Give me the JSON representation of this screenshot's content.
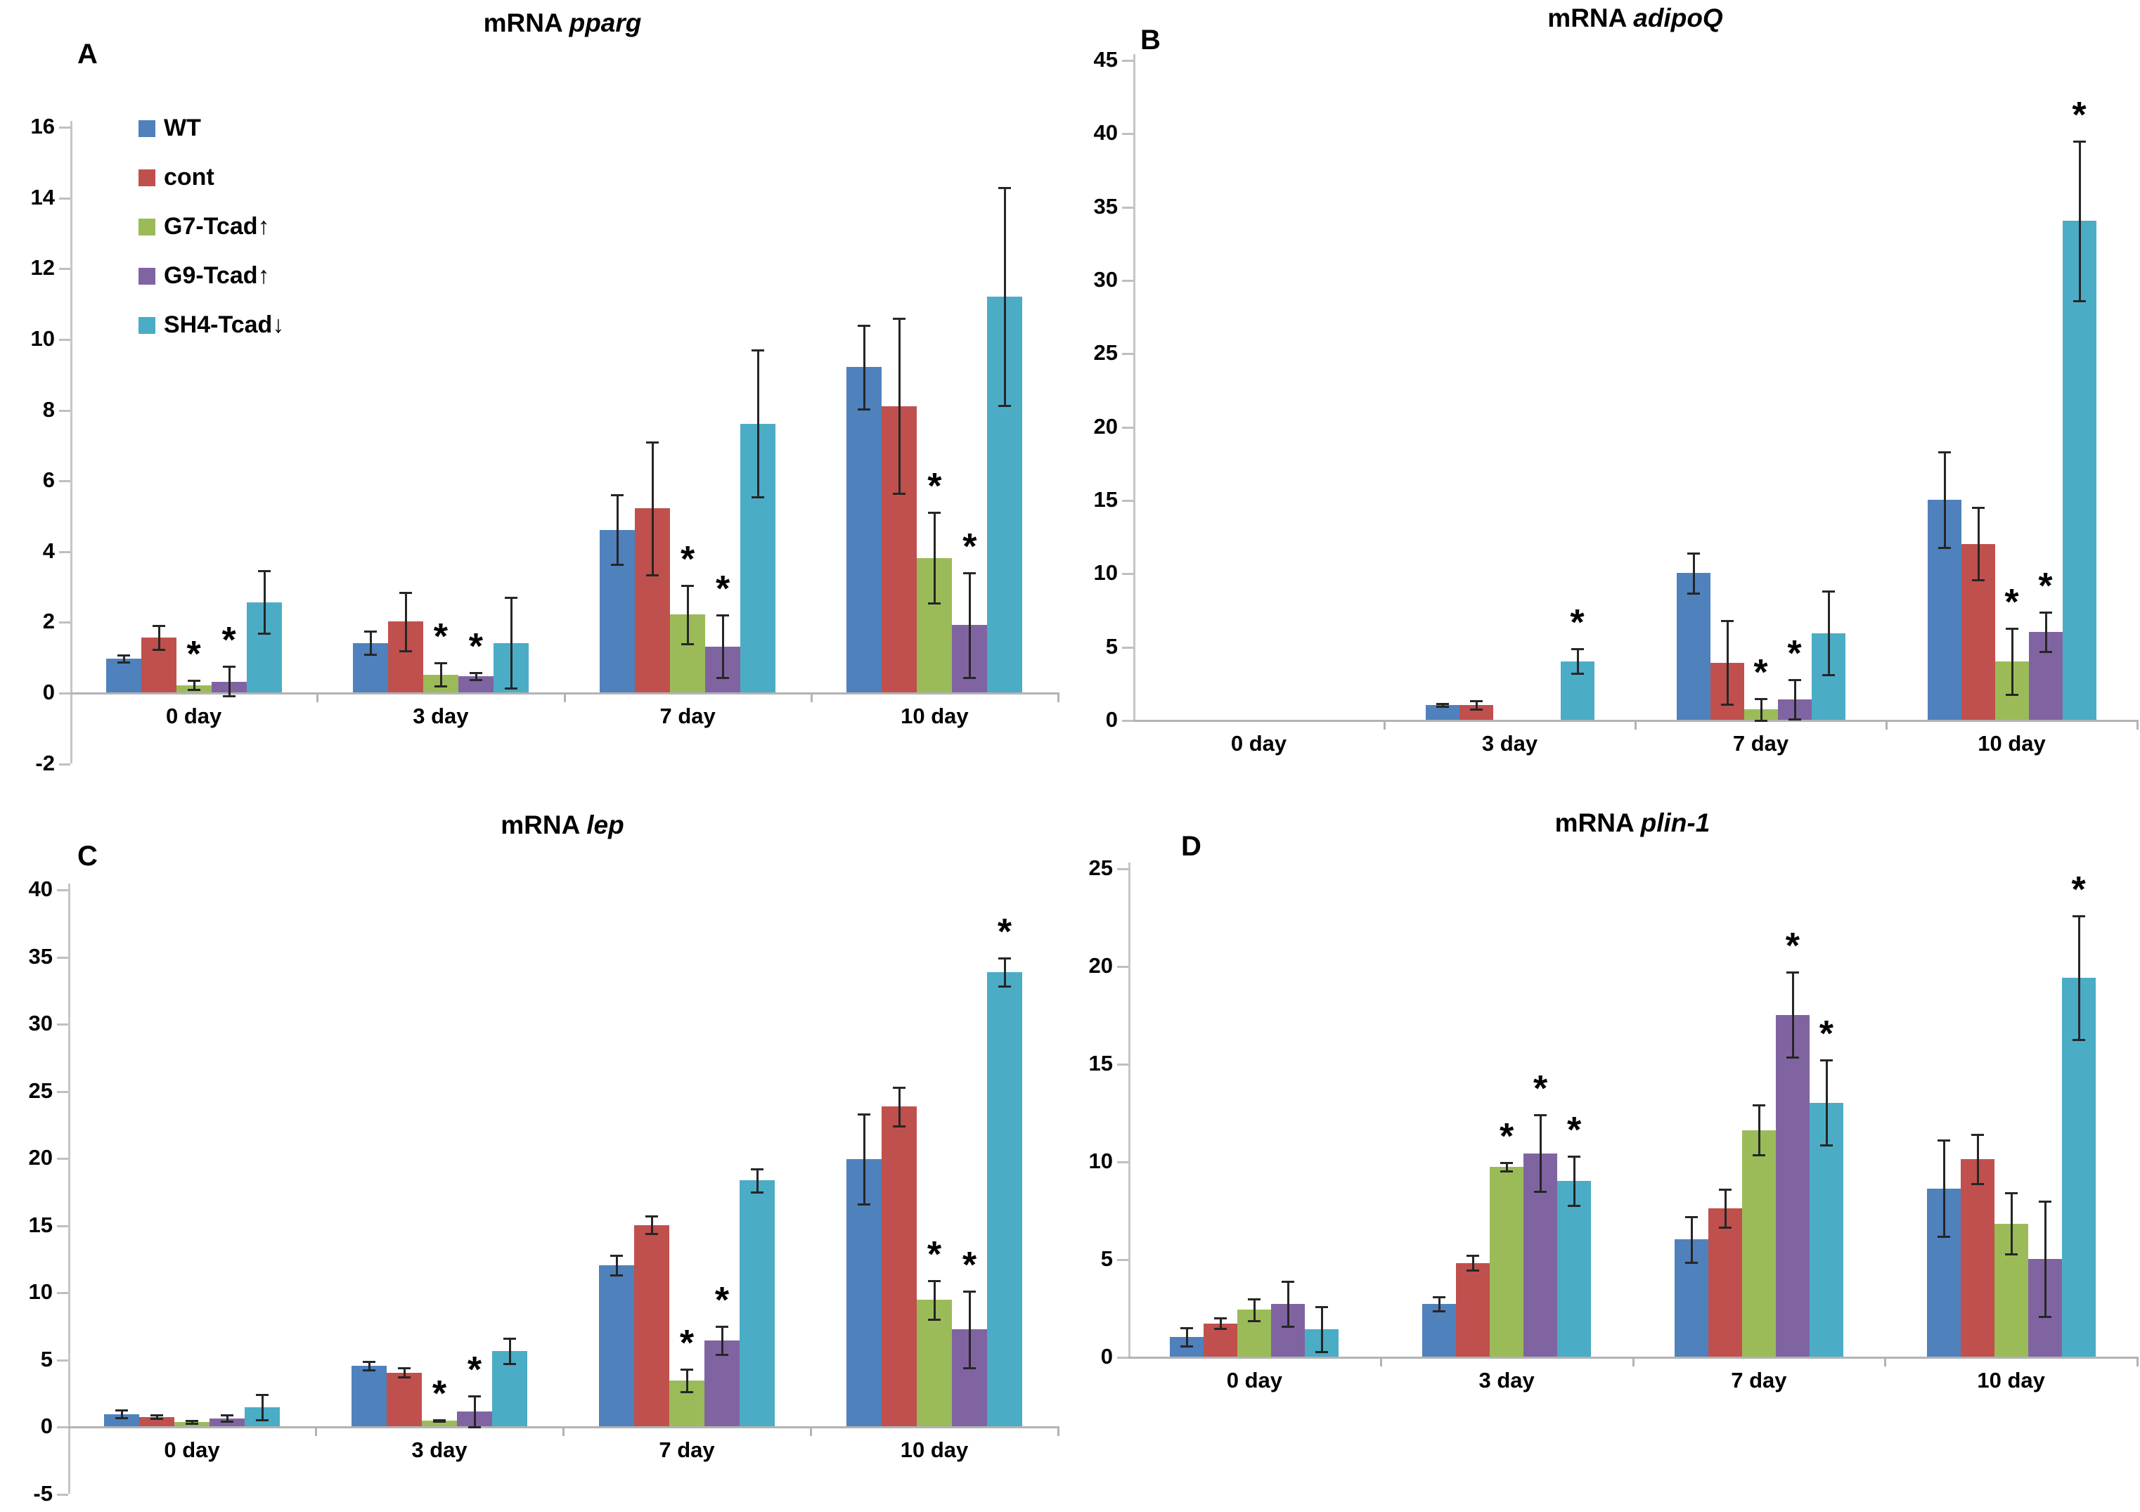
{
  "figure": {
    "background": "#ffffff",
    "significance_marker": "*"
  },
  "legend": {
    "items": [
      {
        "label": "WT",
        "color": "#4F81BD"
      },
      {
        "label": "cont",
        "color": "#C0504D"
      },
      {
        "label": "G7-Tcad↑",
        "color": "#9BBB59"
      },
      {
        "label": "G9-Tcad↑",
        "color": "#8064A2"
      },
      {
        "label": "SH4-Tcad↓",
        "color": "#4BACC6"
      }
    ]
  },
  "chart_data": [
    {
      "type": "bar",
      "panel_label": "A",
      "title_prefix": "mRNA",
      "gene": "pparg",
      "categories": [
        "0 day",
        "3 day",
        "7 day",
        "10 day"
      ],
      "ylim": [
        -2,
        16
      ],
      "ytick_step": 2,
      "grid": false,
      "legend_position": "upper-left-inside",
      "series": [
        {
          "name": "WT",
          "color": "#4F81BD",
          "values": [
            0.95,
            1.4,
            4.6,
            9.2
          ],
          "errors": [
            0.12,
            0.35,
            1.0,
            1.2
          ],
          "sig": [
            false,
            false,
            false,
            false
          ]
        },
        {
          "name": "cont",
          "color": "#C0504D",
          "values": [
            1.55,
            2.0,
            5.2,
            8.1
          ],
          "errors": [
            0.35,
            0.85,
            1.9,
            2.5
          ],
          "sig": [
            false,
            false,
            false,
            false
          ]
        },
        {
          "name": "G7-Tcad↑",
          "color": "#9BBB59",
          "values": [
            0.2,
            0.5,
            2.2,
            3.8
          ],
          "errors": [
            0.15,
            0.35,
            0.85,
            1.3
          ],
          "sig": [
            true,
            true,
            true,
            true
          ]
        },
        {
          "name": "G9-Tcad↑",
          "color": "#8064A2",
          "values": [
            0.3,
            0.45,
            1.3,
            1.9
          ],
          "errors": [
            0.45,
            0.12,
            0.9,
            1.5
          ],
          "sig": [
            true,
            true,
            true,
            true
          ]
        },
        {
          "name": "SH4-Tcad↓",
          "color": "#4BACC6",
          "values": [
            2.55,
            1.4,
            7.6,
            11.2
          ],
          "errors": [
            0.9,
            1.3,
            2.1,
            3.1
          ],
          "sig": [
            false,
            false,
            false,
            false
          ]
        }
      ]
    },
    {
      "type": "bar",
      "panel_label": "B",
      "title_prefix": "mRNA",
      "gene": "adipoQ",
      "categories": [
        "0 day",
        "3 day",
        "7 day",
        "10 day"
      ],
      "ylim": [
        0,
        45
      ],
      "ytick_step": 5,
      "grid": false,
      "series": [
        {
          "name": "WT",
          "color": "#4F81BD",
          "values": [
            0,
            1.0,
            10.0,
            15.0
          ],
          "errors": [
            0,
            0.15,
            1.4,
            3.3
          ],
          "sig": [
            false,
            false,
            false,
            false
          ]
        },
        {
          "name": "cont",
          "color": "#C0504D",
          "values": [
            0,
            1.0,
            3.9,
            12.0
          ],
          "errors": [
            0,
            0.35,
            2.9,
            2.5
          ],
          "sig": [
            false,
            false,
            false,
            false
          ]
        },
        {
          "name": "G7-Tcad↑",
          "color": "#9BBB59",
          "values": [
            0,
            0,
            0.7,
            4.0
          ],
          "errors": [
            0,
            0,
            0.8,
            2.3
          ],
          "sig": [
            false,
            false,
            true,
            true
          ]
        },
        {
          "name": "G9-Tcad↑",
          "color": "#8064A2",
          "values": [
            0,
            0,
            1.4,
            6.0
          ],
          "errors": [
            0,
            0,
            1.4,
            1.4
          ],
          "sig": [
            false,
            false,
            true,
            true
          ]
        },
        {
          "name": "SH4-Tcad↓",
          "color": "#4BACC6",
          "values": [
            0,
            4.0,
            5.9,
            34.0
          ],
          "errors": [
            0,
            0.9,
            2.9,
            5.5
          ],
          "sig": [
            false,
            true,
            false,
            true
          ]
        }
      ]
    },
    {
      "type": "bar",
      "panel_label": "C",
      "title_prefix": "mRNA",
      "gene": "lep",
      "categories": [
        "0 day",
        "3 day",
        "7 day",
        "10 day"
      ],
      "ylim": [
        -5,
        40
      ],
      "ytick_step": 5,
      "grid": false,
      "series": [
        {
          "name": "WT",
          "color": "#4F81BD",
          "values": [
            0.9,
            4.5,
            12.0,
            19.9
          ],
          "errors": [
            0.35,
            0.35,
            0.8,
            3.4
          ],
          "sig": [
            false,
            false,
            false,
            false
          ]
        },
        {
          "name": "cont",
          "color": "#C0504D",
          "values": [
            0.7,
            4.0,
            15.0,
            23.8
          ],
          "errors": [
            0.2,
            0.4,
            0.7,
            1.5
          ],
          "sig": [
            false,
            false,
            false,
            false
          ]
        },
        {
          "name": "G7-Tcad↑",
          "color": "#9BBB59",
          "values": [
            0.3,
            0.4,
            3.4,
            9.4
          ],
          "errors": [
            0.15,
            0.1,
            0.9,
            1.5
          ],
          "sig": [
            false,
            true,
            true,
            true
          ]
        },
        {
          "name": "G9-Tcad↑",
          "color": "#8064A2",
          "values": [
            0.6,
            1.1,
            6.4,
            7.2
          ],
          "errors": [
            0.3,
            1.2,
            1.1,
            2.9
          ],
          "sig": [
            false,
            true,
            true,
            true
          ]
        },
        {
          "name": "SH4-Tcad↓",
          "color": "#4BACC6",
          "values": [
            1.4,
            5.6,
            18.3,
            33.8
          ],
          "errors": [
            1.0,
            1.0,
            0.9,
            1.1
          ],
          "sig": [
            false,
            false,
            false,
            true
          ]
        }
      ]
    },
    {
      "type": "bar",
      "panel_label": "D",
      "title_prefix": "mRNA",
      "gene": "plin-1",
      "categories": [
        "0 day",
        "3 day",
        "7 day",
        "10 day"
      ],
      "ylim": [
        0,
        25
      ],
      "ytick_step": 5,
      "grid": false,
      "series": [
        {
          "name": "WT",
          "color": "#4F81BD",
          "values": [
            1.0,
            2.7,
            6.0,
            8.6
          ],
          "errors": [
            0.5,
            0.4,
            1.2,
            2.5
          ],
          "sig": [
            false,
            false,
            false,
            false
          ]
        },
        {
          "name": "cont",
          "color": "#C0504D",
          "values": [
            1.7,
            4.8,
            7.6,
            10.1
          ],
          "errors": [
            0.3,
            0.4,
            1.0,
            1.3
          ],
          "sig": [
            false,
            false,
            false,
            false
          ]
        },
        {
          "name": "G7-Tcad↑",
          "color": "#9BBB59",
          "values": [
            2.4,
            9.7,
            11.6,
            6.8
          ],
          "errors": [
            0.6,
            0.25,
            1.3,
            1.6
          ],
          "sig": [
            false,
            true,
            false,
            false
          ]
        },
        {
          "name": "G9-Tcad↑",
          "color": "#8064A2",
          "values": [
            2.7,
            10.4,
            17.5,
            5.0
          ],
          "errors": [
            1.2,
            2.0,
            2.2,
            3.0
          ],
          "sig": [
            false,
            true,
            true,
            false
          ]
        },
        {
          "name": "SH4-Tcad↓",
          "color": "#4BACC6",
          "values": [
            1.4,
            9.0,
            13.0,
            19.4
          ],
          "errors": [
            1.2,
            1.3,
            2.2,
            3.2
          ],
          "sig": [
            false,
            true,
            true,
            true
          ]
        }
      ]
    }
  ]
}
